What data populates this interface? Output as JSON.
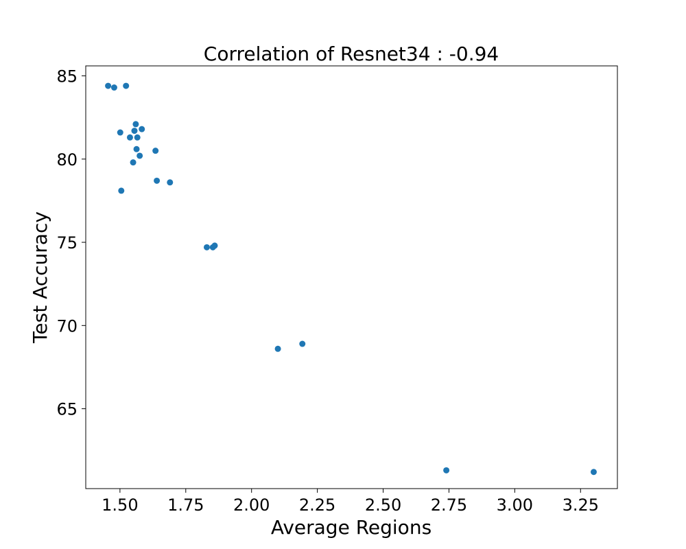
{
  "chart_data": {
    "type": "scatter",
    "title": "Correlation of Resnet34 : -0.94",
    "xlabel": "Average Regions",
    "ylabel": "Test Accuracy",
    "xlim": [
      1.37,
      3.39
    ],
    "ylim": [
      60.2,
      85.6
    ],
    "xticks": [
      1.5,
      1.75,
      2.0,
      2.25,
      2.5,
      2.75,
      3.0,
      3.25
    ],
    "xtick_labels": [
      "1.50",
      "1.75",
      "2.00",
      "2.25",
      "2.50",
      "2.75",
      "3.00",
      "3.25"
    ],
    "yticks": [
      65,
      70,
      75,
      80,
      85
    ],
    "ytick_labels": [
      "65",
      "70",
      "75",
      "80",
      "85"
    ],
    "grid": false,
    "marker_color": "#1f77b4",
    "points": [
      {
        "x": 1.455,
        "y": 84.4
      },
      {
        "x": 1.478,
        "y": 84.3
      },
      {
        "x": 1.523,
        "y": 84.4
      },
      {
        "x": 1.501,
        "y": 81.6
      },
      {
        "x": 1.538,
        "y": 81.3
      },
      {
        "x": 1.555,
        "y": 81.7
      },
      {
        "x": 1.56,
        "y": 82.1
      },
      {
        "x": 1.566,
        "y": 81.3
      },
      {
        "x": 1.583,
        "y": 81.8
      },
      {
        "x": 1.563,
        "y": 80.6
      },
      {
        "x": 1.575,
        "y": 80.2
      },
      {
        "x": 1.55,
        "y": 79.8
      },
      {
        "x": 1.635,
        "y": 80.5
      },
      {
        "x": 1.64,
        "y": 78.7
      },
      {
        "x": 1.69,
        "y": 78.6
      },
      {
        "x": 1.505,
        "y": 78.1
      },
      {
        "x": 1.83,
        "y": 74.7
      },
      {
        "x": 1.853,
        "y": 74.7
      },
      {
        "x": 1.86,
        "y": 74.8
      },
      {
        "x": 2.1,
        "y": 68.6
      },
      {
        "x": 2.193,
        "y": 68.9
      },
      {
        "x": 2.74,
        "y": 61.3
      },
      {
        "x": 3.3,
        "y": 61.2
      }
    ]
  }
}
